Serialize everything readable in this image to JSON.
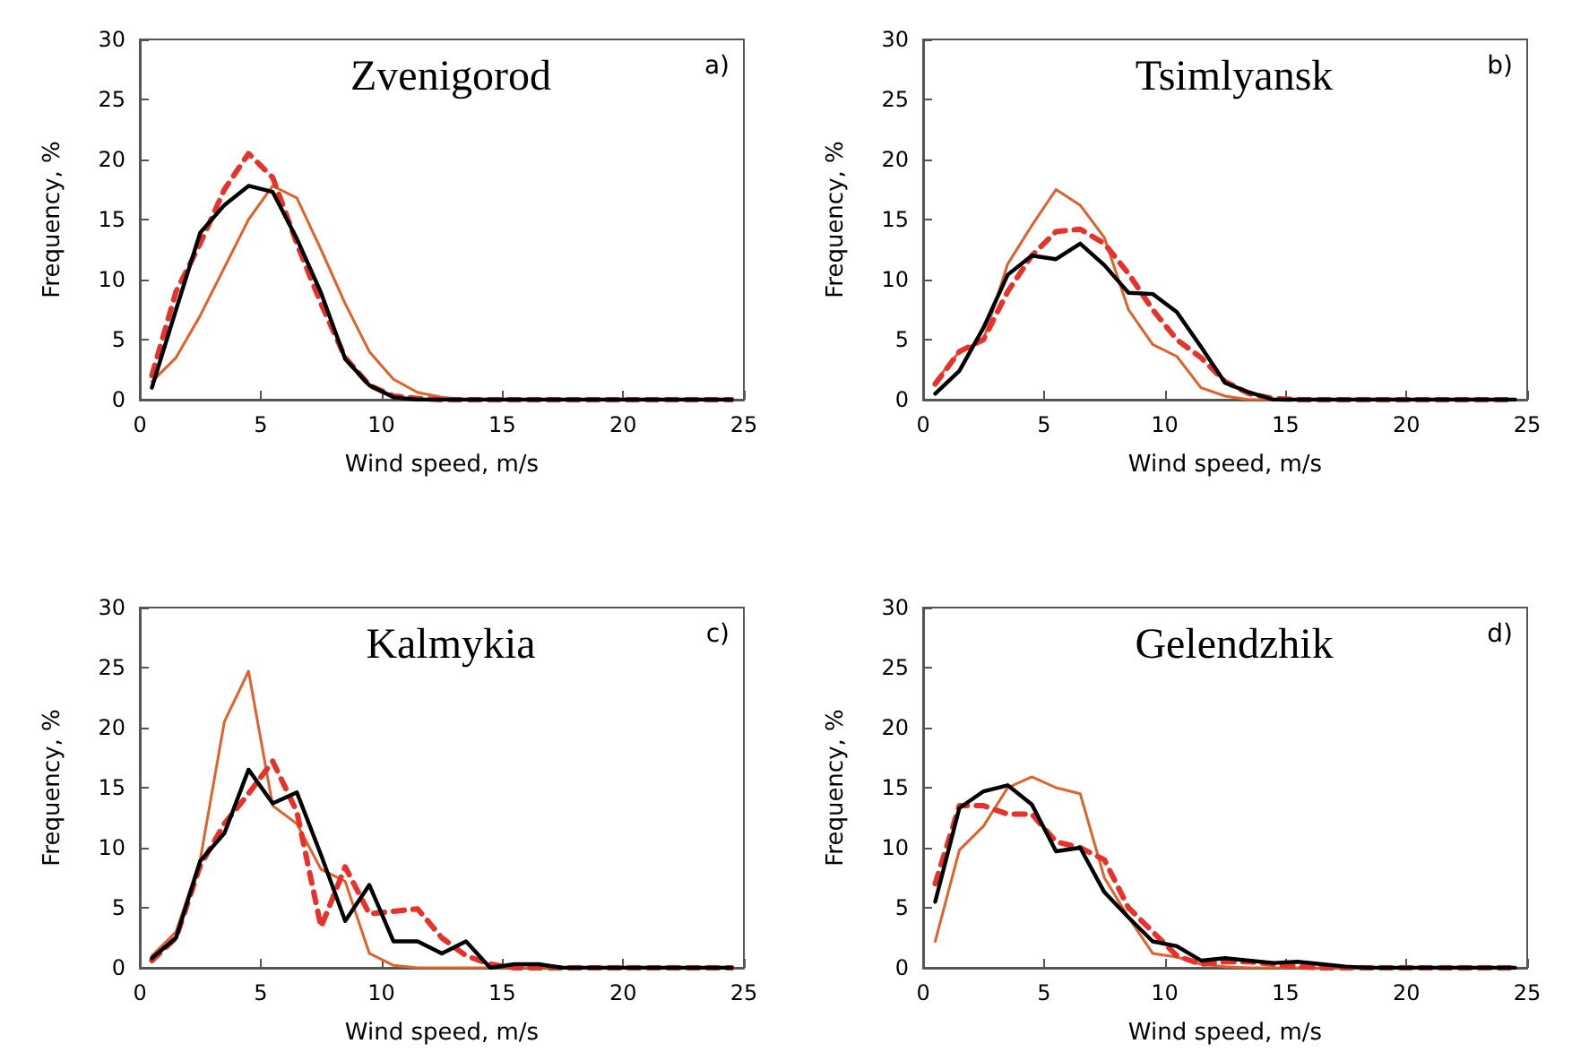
{
  "chart_data": [
    {
      "type": "line",
      "title": "Zvenigorod",
      "xlabel": "Wind speed, m/s",
      "ylabel": "Frequency, %",
      "annotations": [
        "a)"
      ],
      "xlim": [
        0,
        25
      ],
      "xticks": [
        0,
        5,
        10,
        15,
        20,
        25
      ],
      "ylim": [
        0,
        30
      ],
      "yticks": [
        0,
        5,
        10,
        15,
        20,
        25,
        30
      ],
      "x": [
        0.5,
        1.5,
        2.5,
        3.5,
        4.5,
        5.5,
        6.5,
        7.5,
        8.5,
        9.5,
        10.5,
        11.5,
        12.5,
        13.5,
        14.5,
        15.5,
        16.5,
        17.5,
        18.5,
        19.5,
        20.5,
        21.5,
        22.5,
        23.5,
        24.5
      ],
      "series": [
        {
          "color": "#000000",
          "line_style": "solid",
          "values": [
            1,
            7.5,
            13.9,
            16.2,
            17.8,
            17.3,
            13.4,
            8.9,
            3.4,
            1.2,
            0.2,
            0,
            0,
            0,
            0,
            0,
            0,
            0,
            0,
            0,
            0,
            0,
            0,
            0,
            0
          ]
        },
        {
          "color": "#e8312a",
          "line_style": "dashed",
          "values": [
            2,
            9,
            13,
            17.5,
            20.5,
            18.5,
            13,
            8,
            3.5,
            1.2,
            0.3,
            0.1,
            0,
            0,
            0,
            0,
            0,
            0,
            0,
            0,
            0,
            0,
            0,
            0,
            0
          ]
        },
        {
          "color": "#e0622a",
          "line_style": "solid",
          "values": [
            1.5,
            3.5,
            7,
            11,
            15,
            17.8,
            16.8,
            12.5,
            8,
            4,
            1.7,
            0.6,
            0.2,
            0,
            0,
            0,
            0,
            0,
            0,
            0,
            0,
            0,
            0,
            0,
            0
          ]
        }
      ]
    },
    {
      "type": "line",
      "title": "Tsimlyansk",
      "xlabel": "Wind speed, m/s",
      "ylabel": "Frequency, %",
      "annotations": [
        "b)"
      ],
      "xlim": [
        0,
        25
      ],
      "xticks": [
        0,
        5,
        10,
        15,
        20,
        25
      ],
      "ylim": [
        0,
        30
      ],
      "yticks": [
        0,
        5,
        10,
        15,
        20,
        25,
        30
      ],
      "x": [
        0.5,
        1.5,
        2.5,
        3.5,
        4.5,
        5.5,
        6.5,
        7.5,
        8.5,
        9.5,
        10.5,
        11.5,
        12.5,
        13.5,
        14.5,
        15.5,
        16.5,
        17.5,
        18.5,
        19.5,
        20.5,
        21.5,
        22.5,
        23.5,
        24.5
      ],
      "series": [
        {
          "color": "#000000",
          "line_style": "solid",
          "values": [
            0.5,
            2.4,
            6,
            10.4,
            12,
            11.7,
            13,
            11.2,
            8.9,
            8.8,
            7.3,
            4.4,
            1.4,
            0.6,
            0,
            0,
            0,
            0,
            0,
            0,
            0,
            0,
            0,
            0,
            0
          ]
        },
        {
          "color": "#e8312a",
          "line_style": "dashed",
          "values": [
            1.3,
            4,
            5,
            9,
            12,
            14,
            14.2,
            13,
            10.5,
            7.5,
            5,
            3.5,
            1.5,
            0.5,
            0.1,
            0,
            0,
            0,
            0,
            0,
            0,
            0,
            0,
            0,
            0
          ]
        },
        {
          "color": "#e0622a",
          "line_style": "solid",
          "values": [
            1.5,
            4,
            5,
            11.3,
            14.5,
            17.5,
            16.2,
            13.5,
            7.5,
            4.6,
            3.6,
            1,
            0.3,
            0,
            0,
            0,
            0,
            0,
            0,
            0,
            0,
            0,
            0,
            0,
            0
          ]
        }
      ]
    },
    {
      "type": "line",
      "title": "Kalmykia",
      "xlabel": "Wind speed, m/s",
      "ylabel": "Frequency, %",
      "annotations": [
        "c)"
      ],
      "xlim": [
        0,
        25
      ],
      "xticks": [
        0,
        5,
        10,
        15,
        20,
        25
      ],
      "ylim": [
        0,
        30
      ],
      "yticks": [
        0,
        5,
        10,
        15,
        20,
        25,
        30
      ],
      "x": [
        0.5,
        1.5,
        2.5,
        3.5,
        4.5,
        5.5,
        6.5,
        7.5,
        8.5,
        9.5,
        10.5,
        11.5,
        12.5,
        13.5,
        14.5,
        15.5,
        16.5,
        17.5,
        18.5,
        19.5,
        20.5,
        21.5,
        22.5,
        23.5,
        24.5
      ],
      "series": [
        {
          "color": "#000000",
          "line_style": "solid",
          "values": [
            0.8,
            2.5,
            8.9,
            11.2,
            16.5,
            13.7,
            14.6,
            9.4,
            3.9,
            6.9,
            2.2,
            2.2,
            1.2,
            2.2,
            0,
            0.3,
            0.3,
            0,
            0,
            0,
            0,
            0,
            0,
            0,
            0
          ]
        },
        {
          "color": "#e8312a",
          "line_style": "dashed",
          "values": [
            0.6,
            2.5,
            8.5,
            12,
            14.5,
            17.2,
            13,
            3.4,
            8.4,
            4.5,
            4.7,
            4.9,
            2.5,
            1,
            0.3,
            0,
            0,
            0,
            0,
            0,
            0,
            0,
            0,
            0,
            0
          ]
        },
        {
          "color": "#e0622a",
          "line_style": "solid",
          "values": [
            1,
            3,
            9,
            20.5,
            24.7,
            13.5,
            12,
            8.2,
            7.2,
            1.2,
            0.2,
            0,
            0,
            0,
            0,
            0,
            0,
            0,
            0,
            0,
            0,
            0,
            0,
            0,
            0
          ]
        }
      ]
    },
    {
      "type": "line",
      "title": "Gelendzhik",
      "xlabel": "Wind speed, m/s",
      "ylabel": "Frequency, %",
      "annotations": [
        "d)"
      ],
      "xlim": [
        0,
        25
      ],
      "xticks": [
        0,
        5,
        10,
        15,
        20,
        25
      ],
      "ylim": [
        0,
        30
      ],
      "yticks": [
        0,
        5,
        10,
        15,
        20,
        25,
        30
      ],
      "x": [
        0.5,
        1.5,
        2.5,
        3.5,
        4.5,
        5.5,
        6.5,
        7.5,
        8.5,
        9.5,
        10.5,
        11.5,
        12.5,
        13.5,
        14.5,
        15.5,
        16.5,
        17.5,
        18.5,
        19.5,
        20.5,
        21.5,
        22.5,
        23.5,
        24.5
      ],
      "series": [
        {
          "color": "#000000",
          "line_style": "solid",
          "values": [
            5.5,
            13.3,
            14.7,
            15.2,
            13.6,
            9.7,
            10,
            6.3,
            4.2,
            2.2,
            1.8,
            0.6,
            0.8,
            0.6,
            0.4,
            0.5,
            0.3,
            0.1,
            0,
            0,
            0,
            0,
            0,
            0,
            0
          ]
        },
        {
          "color": "#e8312a",
          "line_style": "dashed",
          "values": [
            7,
            13.5,
            13.5,
            12.8,
            12.8,
            10.5,
            10,
            9,
            5,
            3,
            1,
            0.3,
            0.5,
            0.5,
            0.3,
            0.1,
            0,
            0,
            0,
            0,
            0,
            0,
            0,
            0,
            0
          ]
        },
        {
          "color": "#e0622a",
          "line_style": "solid",
          "values": [
            2.2,
            9.8,
            11.8,
            15,
            15.9,
            15,
            14.5,
            7.5,
            4.2,
            1.2,
            0.9,
            0.3,
            0.1,
            0,
            0,
            0,
            0,
            0,
            0,
            0,
            0,
            0,
            0,
            0,
            0
          ]
        }
      ]
    }
  ]
}
